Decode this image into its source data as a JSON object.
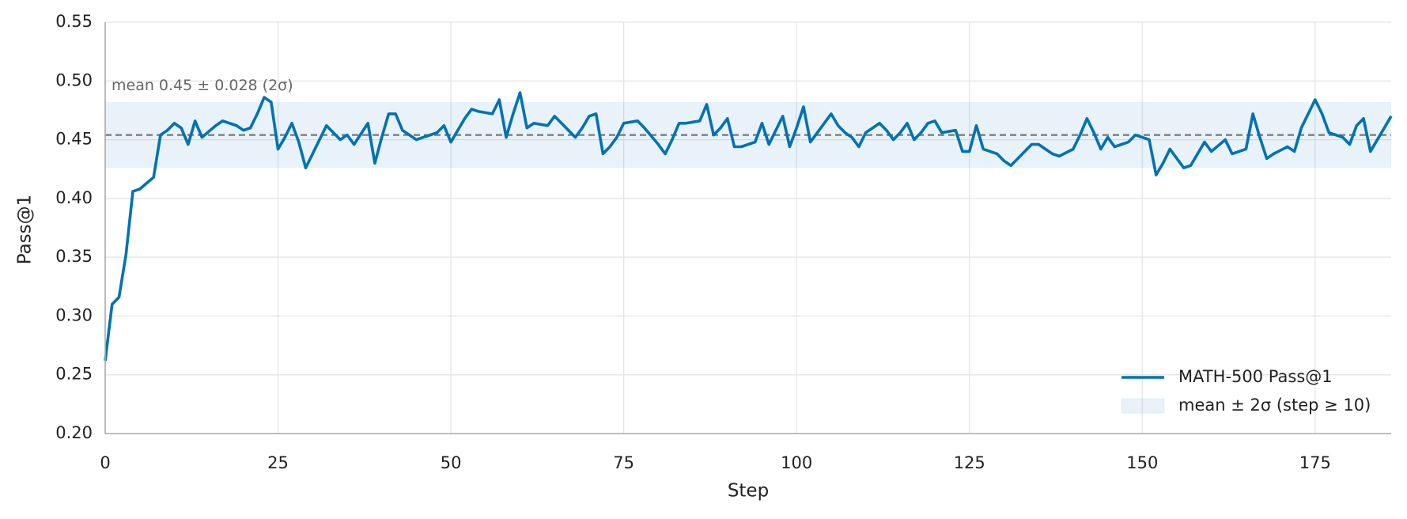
{
  "chart_data": {
    "type": "line",
    "x_label": "Step",
    "y_label": "Pass@1",
    "x": [
      0,
      1,
      2,
      3,
      4,
      5,
      6,
      7,
      8,
      9,
      10,
      11,
      12,
      13,
      14,
      15,
      16,
      17,
      18,
      19,
      20,
      21,
      22,
      23,
      24,
      25,
      26,
      27,
      28,
      29,
      30,
      31,
      32,
      33,
      34,
      35,
      36,
      37,
      38,
      39,
      40,
      41,
      42,
      43,
      44,
      45,
      46,
      47,
      48,
      49,
      50,
      51,
      52,
      53,
      54,
      55,
      56,
      57,
      58,
      59,
      60,
      61,
      62,
      63,
      64,
      65,
      66,
      67,
      68,
      69,
      70,
      71,
      72,
      73,
      74,
      75,
      76,
      77,
      78,
      79,
      80,
      81,
      82,
      83,
      84,
      85,
      86,
      87,
      88,
      89,
      90,
      91,
      92,
      93,
      94,
      95,
      96,
      97,
      98,
      99,
      100,
      101,
      102,
      103,
      104,
      105,
      106,
      107,
      108,
      109,
      110,
      111,
      112,
      113,
      114,
      115,
      116,
      117,
      118,
      119,
      120,
      121,
      122,
      123,
      124,
      125,
      126,
      127,
      128,
      129,
      130,
      131,
      132,
      133,
      134,
      135,
      136,
      137,
      138,
      139,
      140,
      141,
      142,
      143,
      144,
      145,
      146,
      147,
      148,
      149,
      150,
      151,
      152,
      153,
      154,
      155,
      156,
      157,
      158,
      159,
      160,
      161,
      162,
      163,
      164,
      165,
      166,
      167,
      168,
      169,
      170,
      171,
      172,
      173,
      174,
      175,
      176,
      177,
      178,
      179,
      180,
      181,
      182,
      183,
      184,
      185,
      186
    ],
    "series": [
      {
        "name": "MATH-500 Pass@1",
        "color": "#0072b2",
        "values": [
          0.262,
          0.31,
          0.316,
          0.352,
          0.406,
          0.408,
          0.413,
          0.418,
          0.454,
          0.458,
          0.464,
          0.46,
          0.446,
          0.466,
          0.452,
          0.457,
          0.462,
          0.466,
          0.464,
          0.462,
          0.458,
          0.46,
          0.472,
          0.486,
          0.482,
          0.442,
          0.452,
          0.464,
          0.448,
          0.426,
          0.438,
          0.45,
          0.462,
          0.456,
          0.45,
          0.454,
          0.446,
          0.455,
          0.464,
          0.43,
          0.452,
          0.472,
          0.472,
          0.458,
          0.454,
          0.45,
          0.452,
          0.454,
          0.456,
          0.462,
          0.448,
          0.458,
          0.468,
          0.476,
          0.474,
          0.473,
          0.472,
          0.484,
          0.452,
          0.472,
          0.49,
          0.46,
          0.464,
          0.463,
          0.462,
          0.47,
          0.464,
          0.458,
          0.452,
          0.46,
          0.47,
          0.472,
          0.438,
          0.444,
          0.452,
          0.464,
          0.465,
          0.466,
          0.46,
          0.453,
          0.446,
          0.438,
          0.45,
          0.464,
          0.464,
          0.465,
          0.466,
          0.48,
          0.454,
          0.46,
          0.468,
          0.444,
          0.444,
          0.446,
          0.448,
          0.464,
          0.446,
          0.458,
          0.47,
          0.444,
          0.46,
          0.478,
          0.448,
          0.456,
          0.464,
          0.472,
          0.462,
          0.456,
          0.452,
          0.444,
          0.456,
          0.46,
          0.464,
          0.458,
          0.45,
          0.456,
          0.464,
          0.45,
          0.456,
          0.464,
          0.466,
          0.456,
          0.457,
          0.458,
          0.44,
          0.44,
          0.462,
          0.442,
          0.44,
          0.438,
          0.432,
          0.428,
          0.434,
          0.44,
          0.446,
          0.446,
          0.442,
          0.438,
          0.436,
          0.439,
          0.442,
          0.454,
          0.468,
          0.456,
          0.442,
          0.452,
          0.444,
          0.446,
          0.448,
          0.454,
          0.452,
          0.45,
          0.42,
          0.43,
          0.442,
          0.434,
          0.426,
          0.428,
          0.438,
          0.448,
          0.44,
          0.445,
          0.45,
          0.438,
          0.44,
          0.442,
          0.472,
          0.452,
          0.434,
          0.438,
          0.441,
          0.444,
          0.44,
          0.46,
          0.472,
          0.484,
          0.472,
          0.456,
          0.454,
          0.452,
          0.446,
          0.462,
          0.468,
          0.44,
          0.45,
          0.46,
          0.47
        ]
      }
    ],
    "band": {
      "name": "mean ± 2σ (step ≥ 10)",
      "lower": 0.426,
      "upper": 0.482,
      "color": "#0072b2"
    },
    "mean_line": {
      "value": 0.454,
      "label": "mean 0.45 ± 0.028 (2σ)",
      "color": "#777777"
    },
    "xlim": [
      0,
      186
    ],
    "xticks": [
      0,
      25,
      50,
      75,
      100,
      125,
      150,
      175
    ],
    "ylim": [
      0.2,
      0.55
    ],
    "yticks": [
      {
        "value": 0.2,
        "label": "0.20"
      },
      {
        "value": 0.25,
        "label": "0.25"
      },
      {
        "value": 0.3,
        "label": "0.30"
      },
      {
        "value": 0.35,
        "label": "0.35"
      },
      {
        "value": 0.4,
        "label": "0.40"
      },
      {
        "value": 0.45,
        "label": "0.45"
      },
      {
        "value": 0.5,
        "label": "0.50"
      },
      {
        "value": 0.55,
        "label": "0.55"
      }
    ],
    "grid": true,
    "legend": "lower right"
  }
}
